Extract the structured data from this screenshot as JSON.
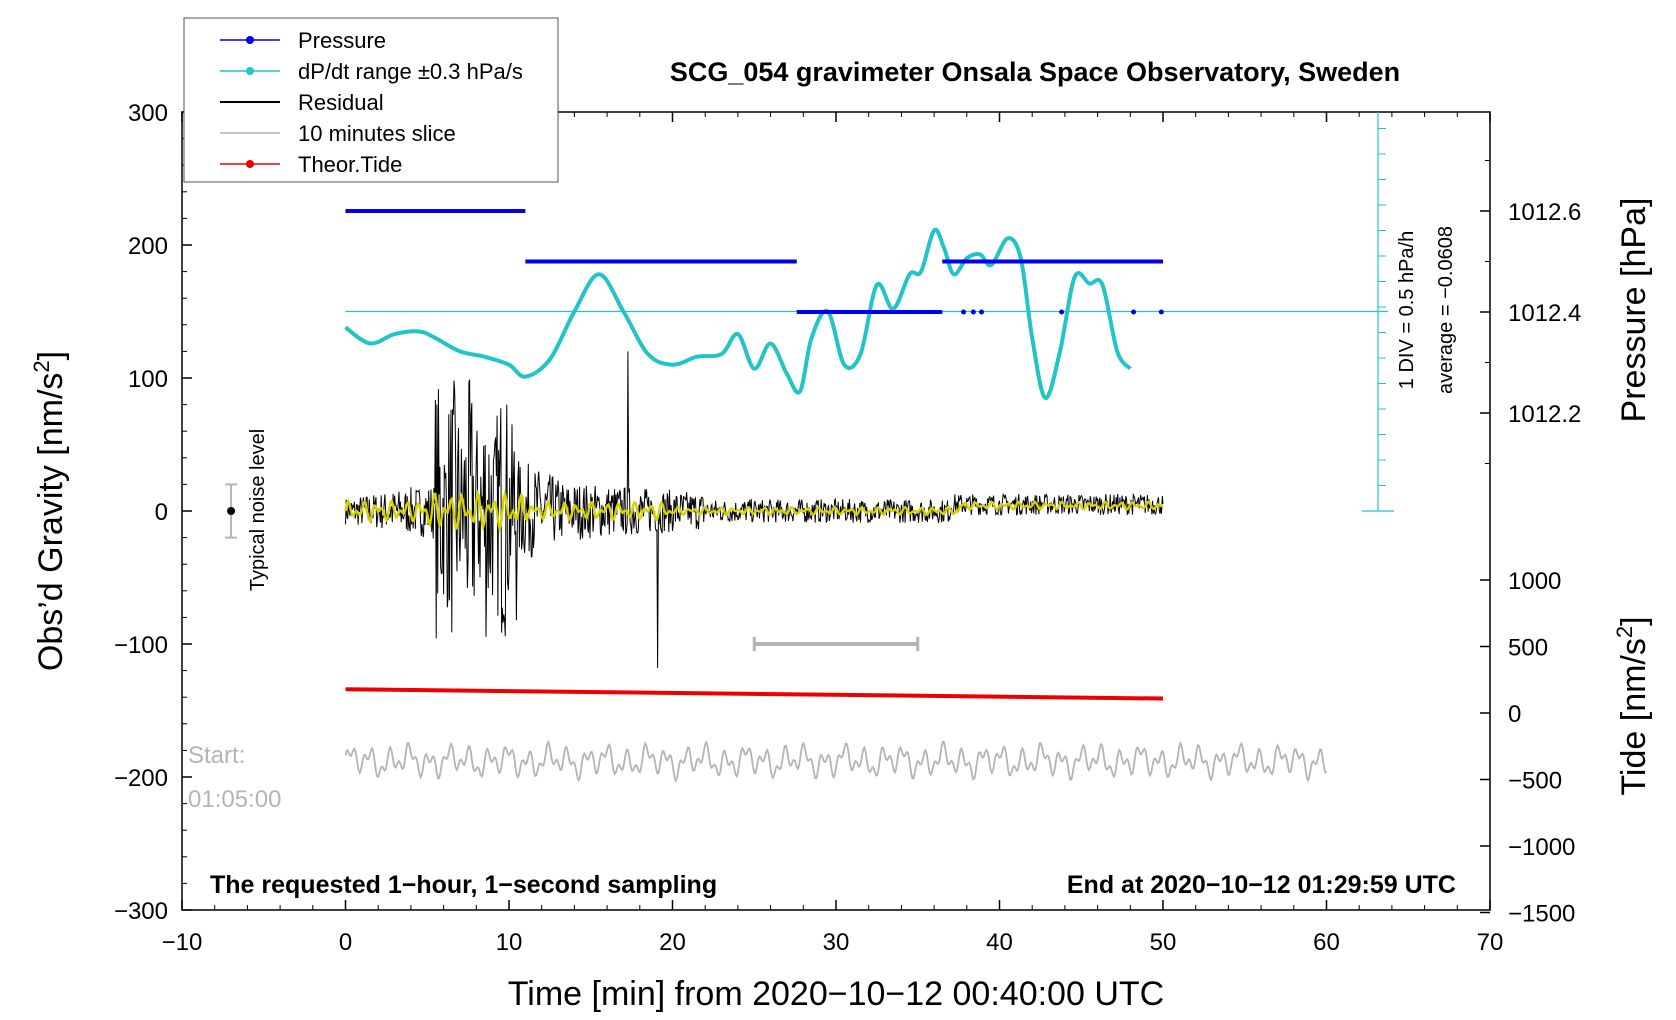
{
  "chart_data": {
    "type": "line",
    "title": "SCG_054 gravimeter Onsala Space Observatory, Sweden",
    "xlabel": "Time [min] from 2020−10−12 00:40:00 UTC",
    "ylabel_left": "Obs’d Gravity [nm/s",
    "ylabel_left_sup": "2",
    "ylabel_left_tail": "]",
    "ylabel_right_top": "Pressure [hPa]",
    "ylabel_right_bottom": "Tide [nm/s",
    "ylabel_right_bottom_sup": "2",
    "ylabel_right_bottom_tail": "]",
    "xlim": [
      -10,
      70
    ],
    "ylim_left": [
      -300,
      300
    ],
    "x_ticks": [
      -10,
      0,
      10,
      20,
      30,
      40,
      50,
      60,
      70
    ],
    "x_tick_labels": [
      "−10",
      "0",
      "10",
      "20",
      "30",
      "40",
      "50",
      "60",
      "70"
    ],
    "y_ticks_left": [
      300,
      200,
      100,
      0,
      -100,
      -200,
      -300
    ],
    "y_tick_labels_left": [
      "300",
      "200",
      "100",
      "0",
      "−100",
      "−200",
      "−300"
    ],
    "pressure_axis": {
      "ticks": [
        1012.6,
        1012.4,
        1012.2
      ],
      "tick_labels": [
        "1012.6",
        "1012.4",
        "1012.2"
      ],
      "range": [
        1011.9,
        1012.8
      ]
    },
    "tide_axis": {
      "ticks": [
        1000,
        500,
        0,
        -500,
        -1000,
        -1500
      ],
      "tick_labels": [
        "1000",
        "500",
        "0",
        "−500",
        "−1000",
        "−1500"
      ],
      "range": [
        -1500,
        1500
      ]
    },
    "legend": [
      {
        "name": "Pressure",
        "color": "#0000ee",
        "marker": true
      },
      {
        "name": "dP/dt range ±0.3 hPa/s",
        "color": "#22c4c8",
        "marker": true
      },
      {
        "name": "Residual",
        "color": "#000000",
        "marker": false
      },
      {
        "name": "10 minutes slice",
        "color": "#b4b4b4",
        "marker": false
      },
      {
        "name": "Theor.Tide",
        "color": "#ee0000",
        "marker": true
      }
    ],
    "legend_position": "top-left",
    "series": [
      {
        "name": "Pressure",
        "unit": "hPa",
        "segments": [
          {
            "x0": 0,
            "x1": 11,
            "y": 1012.6
          },
          {
            "x0": 11,
            "x1": 27.6,
            "y": 1012.5
          },
          {
            "x0": 27.6,
            "x1": 36.5,
            "y": 1012.4
          },
          {
            "x0": 36.5,
            "x1": 50,
            "y": 1012.5
          }
        ],
        "dots": [
          {
            "x": 37.8,
            "y": 1012.4
          },
          {
            "x": 38.4,
            "y": 1012.4
          },
          {
            "x": 38.9,
            "y": 1012.4
          },
          {
            "x": 43.8,
            "y": 1012.4
          },
          {
            "x": 48.2,
            "y": 1012.4
          },
          {
            "x": 49.9,
            "y": 1012.4
          }
        ]
      },
      {
        "name": "dP/dt",
        "unit": "nm/s2 (display)",
        "x": [
          0,
          1.5,
          3,
          4.5,
          5.5,
          7,
          8.5,
          10,
          11,
          12.5,
          14,
          15.5,
          17,
          18.5,
          20,
          21.5,
          23,
          24,
          25,
          26,
          27,
          27.8,
          28.5,
          29.5,
          30.5,
          31.5,
          32.5,
          33.5,
          34.5,
          35.2,
          36,
          36.6,
          37.2,
          38,
          38.8,
          39.5,
          40.5,
          41.3,
          42,
          42.8,
          43.7,
          44.6,
          45.5,
          46.3,
          47.2,
          48
        ],
        "y": [
          138,
          126,
          133,
          135,
          130,
          120,
          116,
          110,
          101,
          114,
          150,
          178,
          150,
          118,
          110,
          116,
          118,
          133,
          107,
          126,
          103,
          90,
          130,
          150,
          110,
          118,
          170,
          152,
          178,
          180,
          211,
          198,
          178,
          190,
          193,
          185,
          205,
          190,
          130,
          85,
          120,
          176,
          171,
          170,
          120,
          107
        ]
      },
      {
        "name": "Residual",
        "unit": "nm/s2",
        "x_range": [
          0,
          50
        ],
        "extremes": [
          120,
          -118
        ]
      },
      {
        "name": "10 minutes slice",
        "unit": "nm/s2",
        "x_range": [
          0,
          60
        ],
        "baseline": -188
      },
      {
        "name": "Theor.Tide",
        "unit": "nm/s2 (display)",
        "x": [
          0,
          50
        ],
        "y": [
          -134,
          -141
        ]
      }
    ],
    "slice_bracket": {
      "x0": 25,
      "x1": 35,
      "y": -100
    },
    "noise_level": {
      "x": -7,
      "y": 0,
      "half_range": 20,
      "label": "Typical noise level"
    },
    "dpdt_reference": {
      "y_line": 150,
      "label1": "1 DIV = 0.5 hPa/h",
      "label2": "average = −0.0608"
    },
    "start_label_1": "Start:",
    "start_label_2": "01:05:00",
    "bottom_left_note": "The requested 1−hour, 1−second sampling",
    "bottom_right_note": "End at 2020−10−12 01:29:59 UTC"
  }
}
